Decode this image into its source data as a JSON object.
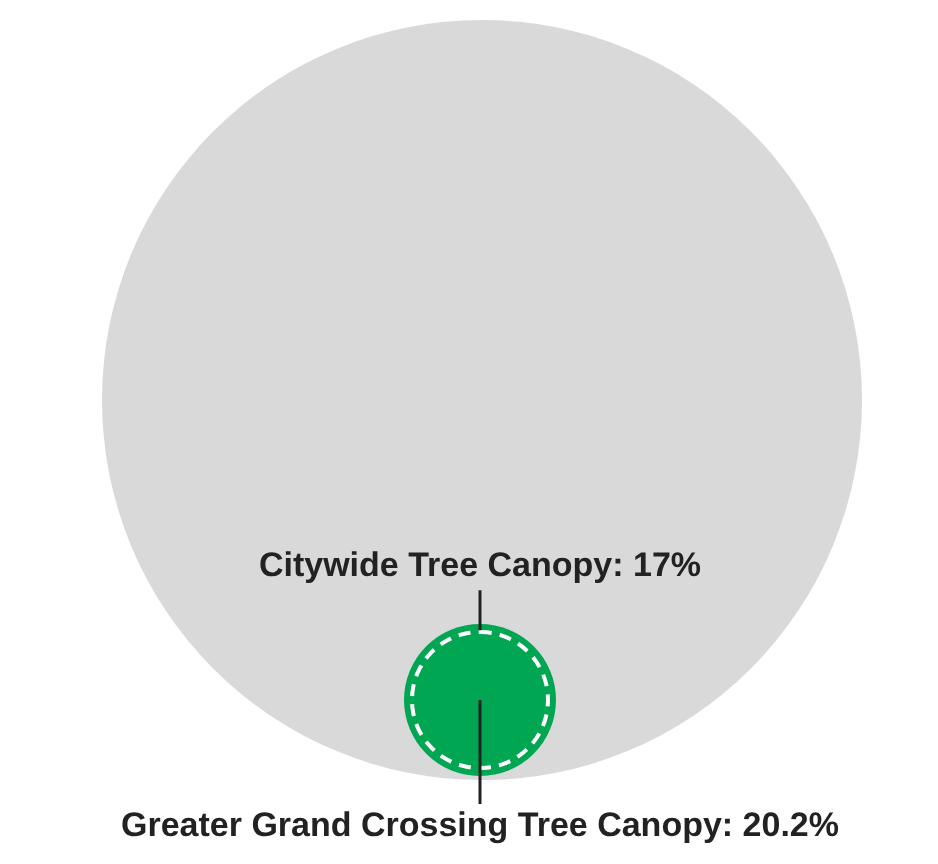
{
  "chart_data": {
    "type": "other",
    "categories": [
      "Citywide Tree Canopy",
      "Greater Grand Crossing Tree Canopy"
    ],
    "values": [
      17,
      20.2
    ],
    "colors": [
      "#ffffff",
      "#00a651"
    ],
    "value_labels": [
      ": 17%",
      ": 20.2%"
    ]
  }
}
